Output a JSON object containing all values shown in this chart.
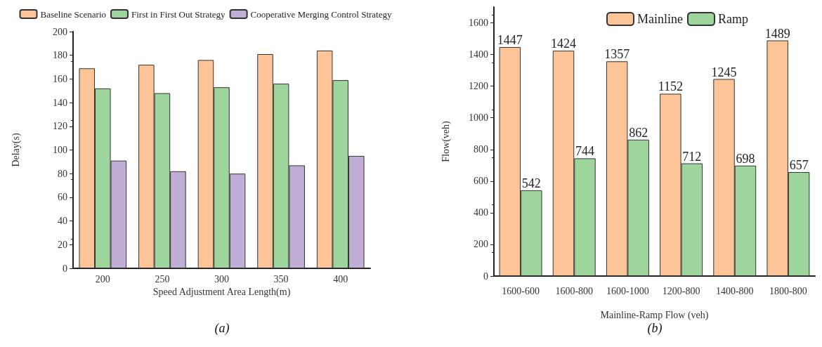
{
  "chart_data": [
    {
      "type": "bar",
      "xlabel": "Speed Adjustment Area Length(m)",
      "ylabel": "Delay(s)",
      "categories": [
        "200",
        "250",
        "300",
        "350",
        "400"
      ],
      "series": [
        {
          "name": "Baseline Scenario",
          "color": "#fdc597",
          "values": [
            169,
            172,
            176,
            181,
            184
          ]
        },
        {
          "name": "First in First Out Strategy",
          "color": "#9ed59c",
          "values": [
            152,
            148,
            153,
            156,
            159
          ]
        },
        {
          "name": "Cooperative Merging Control Strategy",
          "color": "#c0aed6",
          "values": [
            91,
            82,
            80,
            87,
            95
          ]
        }
      ],
      "ylim": [
        0,
        200
      ],
      "yticks": [
        0,
        20,
        40,
        60,
        80,
        100,
        120,
        140,
        160,
        180,
        200
      ],
      "grid": false,
      "legend": "top",
      "annotations": [
        "(a)"
      ]
    },
    {
      "type": "bar",
      "xlabel": "Mainline-Ramp Flow (veh)",
      "ylabel": "Flow(veh)",
      "categories": [
        "1600-600",
        "1600-800",
        "1600-1000",
        "1200-800",
        "1400-800",
        "1800-800"
      ],
      "series": [
        {
          "name": "Mainline",
          "color": "#fdc597",
          "values": [
            1447,
            1424,
            1357,
            1152,
            1245,
            1489
          ]
        },
        {
          "name": "Ramp",
          "color": "#9ed59c",
          "values": [
            542,
            744,
            862,
            712,
            698,
            657
          ]
        }
      ],
      "ylim": [
        0,
        1700
      ],
      "yticks": [
        0,
        200,
        400,
        600,
        800,
        1000,
        1200,
        1400,
        1600
      ],
      "grid": false,
      "legend": "top right",
      "data_labels": true,
      "annotations": [
        "(b)"
      ]
    }
  ]
}
